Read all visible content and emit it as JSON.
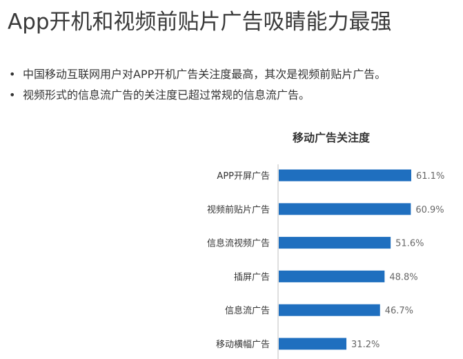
{
  "page": {
    "title": "App开机和视频前贴片广告吸睛能力最强",
    "bullets": [
      "中国移动互联网用户对APP开机广告关注度最高，其次是视频前贴片广告。",
      "视频形式的信息流广告的关注度已超过常规的信息流广告。"
    ]
  },
  "chart_data": {
    "type": "bar",
    "orientation": "horizontal",
    "title": "移动广告关注度",
    "categories": [
      "APP开屏广告",
      "视频前贴片广告",
      "信息流视频广告",
      "插屏广告",
      "信息流广告",
      "移动横幅广告"
    ],
    "values": [
      61.1,
      60.9,
      51.6,
      48.8,
      46.7,
      31.2
    ],
    "labels": [
      "61.1%",
      "60.9%",
      "51.6%",
      "48.8%",
      "46.7%",
      "31.2%"
    ],
    "unit": "%",
    "bar_color": "#1f6fbf",
    "axis_color": "#bfbfbf",
    "label_color": "#666666",
    "xlim": [
      0,
      61.1
    ],
    "grid": false,
    "legend": "none"
  }
}
